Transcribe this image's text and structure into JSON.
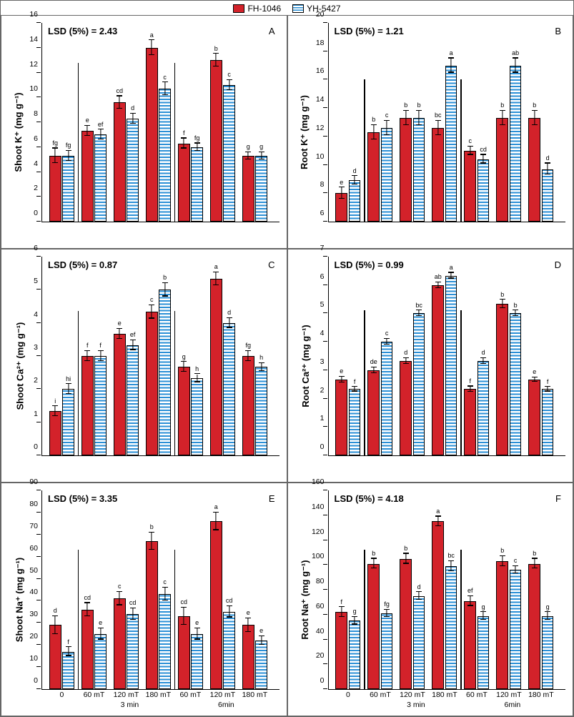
{
  "legend": {
    "series1": "FH-1046",
    "series2": "YH-5427"
  },
  "colors": {
    "series1_fill": "#d3222a",
    "series2_stripe": "#2a8fd6",
    "series2_bg": "#ffffff",
    "border": "#000000"
  },
  "x_categories": [
    "0",
    "60 mT",
    "120 mT",
    "180 mT",
    "60 mT",
    "120 mT",
    "180 mT"
  ],
  "x_super": [
    "",
    "3 min",
    "",
    "",
    "6min",
    "",
    ""
  ],
  "x_super_positions": [
    2,
    5
  ],
  "x_super_labels": [
    "3 min",
    "6min"
  ],
  "panels": [
    {
      "id": "A",
      "ylabel": "Shoot K⁺ (mg g⁻¹)",
      "lsd": "LSD (5%) = 2.43",
      "ylim": [
        0,
        16
      ],
      "ytick_step": 2,
      "vline_top": 12.8,
      "series1": {
        "values": [
          5.3,
          7.3,
          9.6,
          14.0,
          6.3,
          13.0,
          5.3
        ],
        "err": [
          0.6,
          0.4,
          0.5,
          0.6,
          0.4,
          0.5,
          0.3
        ],
        "sig": [
          "fg",
          "e",
          "cd",
          "a",
          "f",
          "b",
          "g"
        ]
      },
      "series2": {
        "values": [
          5.3,
          7.0,
          8.3,
          10.7,
          6.0,
          11.0,
          5.3
        ],
        "err": [
          0.4,
          0.4,
          0.4,
          0.5,
          0.3,
          0.4,
          0.3
        ],
        "sig": [
          "fg",
          "ef",
          "d",
          "c",
          "fg",
          "c",
          "g"
        ]
      }
    },
    {
      "id": "B",
      "ylabel": "Root K⁺ (mg g⁻¹)",
      "lsd": "LSD (5%) = 1.21",
      "ylim": [
        6,
        20
      ],
      "ytick_step": 2,
      "vline_top": 16.0,
      "series1": {
        "values": [
          8.0,
          12.3,
          13.3,
          12.6,
          11.0,
          13.3,
          13.3
        ],
        "err": [
          0.4,
          0.5,
          0.5,
          0.5,
          0.3,
          0.5,
          0.5
        ],
        "sig": [
          "e",
          "b",
          "b",
          "bc",
          "c",
          "b",
          "b"
        ]
      },
      "series2": {
        "values": [
          8.9,
          12.6,
          13.3,
          17.0,
          10.4,
          17.0,
          9.7
        ],
        "err": [
          0.3,
          0.5,
          0.5,
          0.5,
          0.3,
          0.5,
          0.4
        ],
        "sig": [
          "d",
          "c",
          "b",
          "a",
          "cd",
          "ab",
          "d"
        ]
      }
    },
    {
      "id": "C",
      "ylabel": "Shoot Ca²⁺ (mg g⁻¹)",
      "lsd": "LSD (5%) = 0.87",
      "ylim": [
        0,
        6
      ],
      "ytick_step": 1,
      "vline_top": 4.35,
      "series1": {
        "values": [
          1.33,
          3.0,
          3.67,
          4.33,
          2.67,
          5.33,
          3.0
        ],
        "err": [
          0.15,
          0.15,
          0.15,
          0.2,
          0.15,
          0.2,
          0.15
        ],
        "sig": [
          "i",
          "f",
          "e",
          "c",
          "g",
          "a",
          "fg"
        ]
      },
      "series2": {
        "values": [
          2.0,
          3.0,
          3.33,
          5.0,
          2.33,
          4.0,
          2.67
        ],
        "err": [
          0.15,
          0.15,
          0.15,
          0.2,
          0.12,
          0.15,
          0.12
        ],
        "sig": [
          "hi",
          "f",
          "ef",
          "b",
          "h",
          "d",
          "h"
        ]
      }
    },
    {
      "id": "D",
      "ylabel": "Root Ca²⁺ (mg g⁻¹)",
      "lsd": "LSD (5%) = 0.99",
      "ylim": [
        0,
        7
      ],
      "ytick_step": 1,
      "vline_top": 5.1,
      "series1": {
        "values": [
          2.67,
          3.0,
          3.33,
          6.0,
          2.33,
          5.33,
          2.67
        ],
        "err": [
          0.1,
          0.1,
          0.1,
          0.1,
          0.1,
          0.15,
          0.08
        ],
        "sig": [
          "e",
          "de",
          "d",
          "ab",
          "f",
          "b",
          "e"
        ]
      },
      "series2": {
        "values": [
          2.33,
          4.0,
          5.0,
          6.33,
          3.33,
          5.0,
          2.33
        ],
        "err": [
          0.08,
          0.1,
          0.1,
          0.1,
          0.1,
          0.1,
          0.08
        ],
        "sig": [
          "f",
          "c",
          "bc",
          "a",
          "d",
          "b",
          "f"
        ]
      }
    },
    {
      "id": "E",
      "ylabel": "Shoot Na⁺ (mg g⁻¹)",
      "lsd": "LSD (5%) = 3.35",
      "ylim": [
        0,
        90
      ],
      "ytick_step": 10,
      "vline_top": 63,
      "series1": {
        "values": [
          29,
          36,
          41,
          67,
          33,
          76,
          29
        ],
        "err": [
          4,
          3,
          3,
          4,
          4,
          4,
          3
        ],
        "sig": [
          "d",
          "cd",
          "c",
          "b",
          "cd",
          "a",
          "e"
        ]
      },
      "series2": {
        "values": [
          17,
          25,
          34,
          43,
          25,
          35,
          22
        ],
        "err": [
          2,
          2.5,
          2.5,
          3,
          2.5,
          2.5,
          2
        ],
        "sig": [
          "f",
          "e",
          "cd",
          "c",
          "e",
          "cd",
          "e"
        ]
      }
    },
    {
      "id": "F",
      "ylabel": "Root Na⁺ (mg g⁻¹)",
      "lsd": "LSD (5%) = 4.18",
      "ylim": [
        0,
        160
      ],
      "ytick_step": 20,
      "vline_top": 112,
      "series1": {
        "values": [
          62,
          101,
          105,
          135,
          71,
          103,
          101
        ],
        "err": [
          4,
          4,
          4,
          4,
          4,
          4,
          4
        ],
        "sig": [
          "f",
          "b",
          "b",
          "a",
          "ef",
          "b",
          "b"
        ]
      },
      "series2": {
        "values": [
          55,
          61,
          75,
          99,
          59,
          96,
          59
        ],
        "err": [
          3,
          3,
          3,
          4,
          3,
          3,
          3
        ],
        "sig": [
          "g",
          "fg",
          "d",
          "bc",
          "g",
          "c",
          "g"
        ]
      }
    }
  ],
  "layout": {
    "group_gap_pct": 3.0,
    "bar_gap_pct": 0.5,
    "left_pad_pct": 3.0,
    "right_pad_pct": 2.0,
    "vline_positions": [
      1,
      4
    ]
  }
}
